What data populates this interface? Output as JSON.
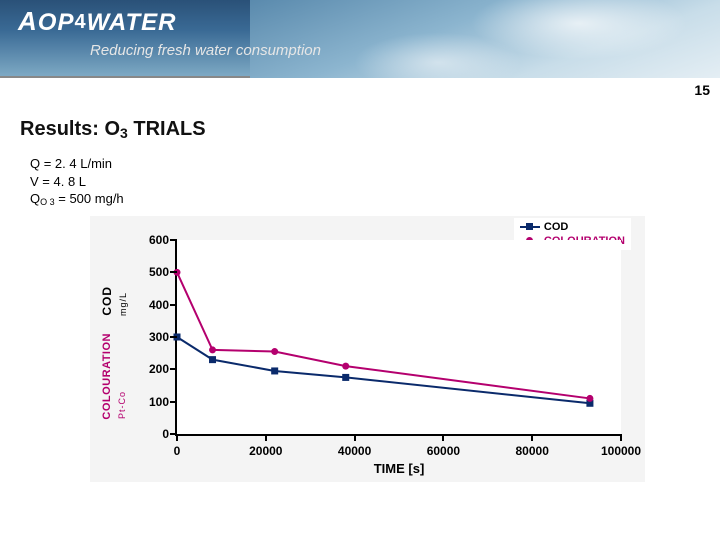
{
  "banner": {
    "brand_lead": "A",
    "brand_rest": "OP",
    "brand_four": "4",
    "brand_tail": "WATER",
    "tagline": "Reducing fresh water consumption"
  },
  "page_number": "15",
  "section_title_pre": "Results: O",
  "section_title_sub": "3",
  "section_title_post": " TRIALS",
  "params": {
    "q": "Q = 2. 4 L/min",
    "v": "V = 4. 8 L",
    "qo3_pre": "Q",
    "qo3_sub": "O 3",
    "qo3_post": " = 500 mg/h"
  },
  "chart": {
    "type": "line",
    "background_color": "#f4f4f4",
    "plot_background": "#ffffff",
    "axis_color": "#000000",
    "xaxis": {
      "title": "TIME [s]",
      "min": 0,
      "max": 100000,
      "ticks": [
        0,
        20000,
        40000,
        60000,
        80000,
        100000
      ],
      "label_fontsize": 12
    },
    "yaxis": {
      "min": 0,
      "max": 600,
      "ticks": [
        0,
        100,
        200,
        300,
        400,
        500,
        600
      ],
      "label_fontsize": 12,
      "title_cod": "COD",
      "title_cod_unit": "mg/L",
      "title_colour": "COLOURATION",
      "title_colour_unit": "Pt-Co"
    },
    "legend": {
      "position": "top-right",
      "items": [
        {
          "label": "COD",
          "color": "#0a2a6b",
          "marker": "square"
        },
        {
          "label": "COLOURATION",
          "color": "#b4006e",
          "marker": "circle"
        }
      ]
    },
    "series": [
      {
        "name": "COD",
        "color": "#0a2a6b",
        "marker": "square",
        "marker_size": 7,
        "line_width": 2,
        "points": [
          {
            "x": 0,
            "y": 300
          },
          {
            "x": 8000,
            "y": 230
          },
          {
            "x": 22000,
            "y": 195
          },
          {
            "x": 38000,
            "y": 175
          },
          {
            "x": 93000,
            "y": 95
          }
        ]
      },
      {
        "name": "COLOURATION",
        "color": "#b4006e",
        "marker": "circle",
        "marker_size": 7,
        "line_width": 2,
        "points": [
          {
            "x": 0,
            "y": 500
          },
          {
            "x": 8000,
            "y": 260
          },
          {
            "x": 22000,
            "y": 255
          },
          {
            "x": 38000,
            "y": 210
          },
          {
            "x": 93000,
            "y": 110
          }
        ]
      }
    ]
  }
}
